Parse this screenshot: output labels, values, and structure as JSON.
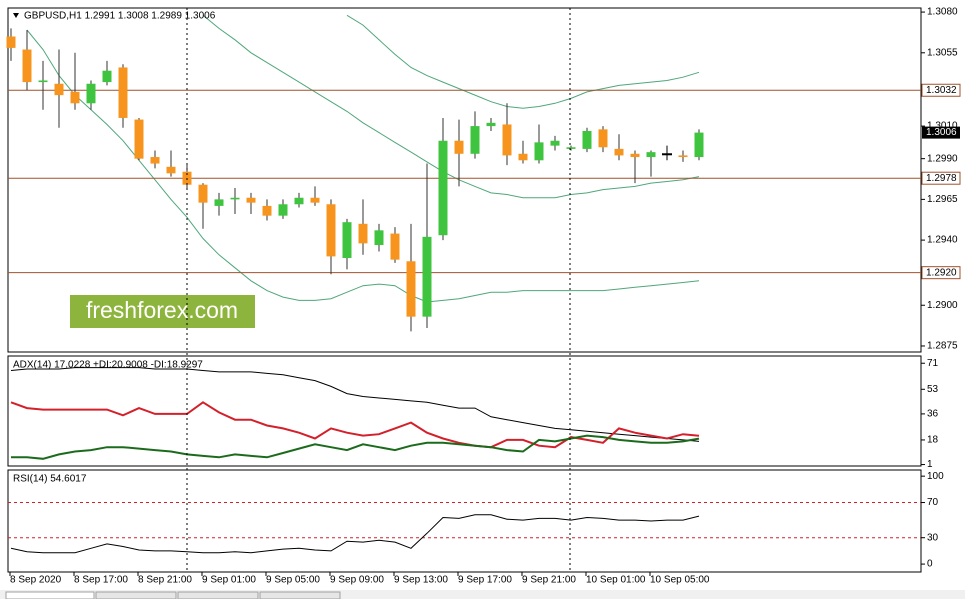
{
  "chart_data": [
    {
      "type": "candlestick",
      "title": "GBPUSD,H1  1.2991 1.3008 1.2989 1.3006",
      "watermark": "freshforex.com",
      "categories": [
        "8 Sep 2020",
        null,
        null,
        null,
        "8 Sep 17:00",
        null,
        null,
        null,
        "8 Sep 21:00",
        null,
        null,
        null,
        "9 Sep 01:00",
        null,
        null,
        null,
        "9 Sep 05:00",
        null,
        null,
        null,
        "9 Sep 09:00",
        null,
        null,
        null,
        "9 Sep 13:00",
        null,
        null,
        null,
        "9 Sep 17:00",
        null,
        null,
        null,
        "9 Sep 21:00",
        null,
        null,
        null,
        "10 Sep 01:00",
        null,
        null,
        null,
        "10 Sep 05:00",
        null,
        null,
        null
      ],
      "open": [
        1.3065,
        1.3057,
        1.3037,
        1.3036,
        1.3031,
        1.3024,
        1.3037,
        1.3046,
        1.3014,
        1.2991,
        1.2985,
        1.2982,
        1.2974,
        1.2961,
        1.2965,
        1.2966,
        1.2961,
        1.2955,
        1.2962,
        1.2966,
        1.2962,
        1.2929,
        1.295,
        1.2937,
        1.2944,
        1.2927,
        1.2893,
        1.2943,
        1.3001,
        1.2993,
        1.301,
        1.3011,
        1.2993,
        1.2989,
        1.2998,
        1.2996,
        1.2996,
        1.3008,
        1.2996,
        1.2993,
        1.2991,
        1.2993,
        1.2992,
        1.2991
      ],
      "high": [
        1.307,
        1.3069,
        1.305,
        1.3057,
        1.3055,
        1.3038,
        1.305,
        1.3048,
        1.3015,
        1.2995,
        1.2995,
        1.2987,
        1.2975,
        1.2969,
        1.2972,
        1.2969,
        1.2965,
        1.2965,
        1.2969,
        1.2973,
        1.2965,
        1.2953,
        1.2965,
        1.295,
        1.2948,
        1.295,
        1.2987,
        1.3015,
        1.3014,
        1.3019,
        1.3015,
        1.3024,
        1.3001,
        1.3011,
        1.3004,
        1.2998,
        1.3009,
        1.301,
        1.3005,
        1.2995,
        1.2995,
        1.2998,
        1.2995,
        1.3008
      ],
      "low": [
        1.305,
        1.3032,
        1.302,
        1.3009,
        1.302,
        1.302,
        1.3035,
        1.3009,
        1.2989,
        1.2984,
        1.2979,
        1.2972,
        1.2947,
        1.2955,
        1.2956,
        1.2956,
        1.2952,
        1.2953,
        1.296,
        1.2961,
        1.2919,
        1.2922,
        1.2931,
        1.2933,
        1.2926,
        1.2884,
        1.2886,
        1.294,
        1.2973,
        1.299,
        1.3007,
        1.2986,
        1.2987,
        1.2987,
        1.2995,
        1.2995,
        1.2994,
        1.2994,
        1.2989,
        1.2975,
        1.2979,
        1.2989,
        1.2988,
        1.2989
      ],
      "close": [
        1.3058,
        1.3037,
        1.3038,
        1.3029,
        1.3024,
        1.3036,
        1.3044,
        1.3015,
        1.299,
        1.2987,
        1.2981,
        1.2974,
        1.2963,
        1.2965,
        1.2966,
        1.2963,
        1.2955,
        1.2962,
        1.2966,
        1.2963,
        1.293,
        1.2951,
        1.2938,
        1.2946,
        1.2928,
        1.2893,
        1.2942,
        1.3001,
        1.2993,
        1.301,
        1.3012,
        1.2992,
        1.2989,
        1.3,
        1.3001,
        1.2997,
        1.3007,
        1.2997,
        1.2992,
        1.2991,
        1.2994,
        1.2993,
        1.2991,
        1.3006
      ],
      "up_color": "#3fc43f",
      "down_color": "#f7941d",
      "doji_color": "#000000",
      "bands": [
        {
          "color": "#4fa77a",
          "values": [
            null,
            null,
            null,
            null,
            null,
            null,
            null,
            null,
            null,
            null,
            null,
            null,
            null,
            null,
            null,
            null,
            null,
            null,
            null,
            null,
            null,
            1.3078,
            1.3072,
            1.3063,
            1.3054,
            1.3046,
            1.3041,
            1.3037,
            1.3033,
            1.3029,
            1.3025,
            1.3022,
            1.3021,
            1.3022,
            1.3024,
            1.3027,
            1.3031,
            1.3033,
            1.3035,
            1.3036,
            1.3037,
            1.3038,
            1.304,
            1.3043
          ]
        },
        {
          "color": "#4fa77a",
          "values": [
            null,
            null,
            null,
            null,
            null,
            null,
            null,
            null,
            null,
            null,
            null,
            null,
            1.3078,
            1.307,
            1.3063,
            1.3055,
            1.3049,
            1.3043,
            1.3037,
            1.3031,
            1.3025,
            1.3019,
            1.3012,
            1.3006,
            1.3,
            1.2994,
            1.2988,
            1.2982,
            1.2977,
            1.2973,
            1.2969,
            1.2968,
            1.2966,
            1.2966,
            1.2966,
            1.2968,
            1.2969,
            1.2971,
            1.2972,
            1.2973,
            1.2975,
            1.2976,
            1.2977,
            1.2979
          ]
        },
        {
          "color": "#4fa77a",
          "values": [
            null,
            1.3069,
            1.3057,
            1.3041,
            1.3029,
            1.302,
            1.3011,
            1.3001,
            1.2989,
            1.2977,
            1.2965,
            1.2954,
            1.2941,
            1.2931,
            1.2923,
            1.2915,
            1.2909,
            1.2905,
            1.2903,
            1.2903,
            1.2904,
            1.2908,
            1.2912,
            1.2913,
            1.2912,
            1.2906,
            1.2902,
            1.2903,
            1.2904,
            1.2906,
            1.2908,
            1.2908,
            1.2909,
            1.2909,
            1.2909,
            1.2909,
            1.2909,
            1.2909,
            1.291,
            1.2911,
            1.2912,
            1.2913,
            1.2914,
            1.2915
          ]
        }
      ],
      "hlines": [
        {
          "value": 1.3032,
          "color": "#a0522d"
        },
        {
          "value": 1.2978,
          "color": "#a0522d"
        },
        {
          "value": 1.292,
          "label": "1.2920",
          "color": "#a0522d"
        }
      ],
      "last": 1.3006,
      "ylim": [
        1.28713,
        1.30825
      ],
      "yticks": [
        {
          "value": 1.308,
          "label": "1.3080"
        },
        1.3055,
        {
          "value": 1.301,
          "label": "1.3010"
        },
        {
          "value": 1.299,
          "label": "1.2990"
        },
        1.2965,
        {
          "value": 1.294,
          "label": "1.2940"
        },
        {
          "value": 1.29,
          "label": "1.2900"
        },
        1.2875
      ]
    },
    {
      "type": "line",
      "title": "ADX(14) 17.0228 +DI:20.9008 -DI:18.9297",
      "ylim": [
        0,
        76
      ],
      "yticks": [
        71,
        53,
        36,
        18,
        1
      ],
      "series": [
        {
          "color": "#000000",
          "values": [
            66,
            67,
            67,
            67,
            68,
            68,
            68,
            68,
            68,
            67,
            67,
            67,
            66,
            65,
            65,
            65,
            64,
            63,
            61,
            59,
            55,
            50,
            48,
            47,
            46,
            45,
            44,
            42,
            40,
            40,
            34,
            32,
            30,
            28,
            26,
            25,
            24,
            23,
            22,
            21,
            20,
            19,
            18,
            17.0228
          ]
        },
        {
          "color": "#d4202a",
          "values": [
            44,
            40,
            39,
            39,
            39,
            39,
            39,
            35,
            40,
            36,
            36,
            36,
            44,
            37,
            32,
            32,
            28,
            26,
            23,
            19,
            26,
            23,
            21,
            22,
            26,
            30,
            23,
            19,
            16,
            14,
            13,
            18,
            18,
            14,
            13,
            20,
            18,
            16,
            26,
            23,
            21,
            19,
            22,
            20.9008
          ]
        },
        {
          "color": "#1c6b1c",
          "values": [
            6,
            6,
            5,
            8,
            10,
            11,
            13,
            13,
            12,
            11,
            10,
            8,
            7,
            6,
            8,
            7,
            6,
            9,
            12,
            15,
            13,
            11,
            15,
            13,
            11,
            14,
            16,
            16,
            15,
            14,
            13,
            11,
            10,
            18,
            17,
            19,
            21,
            20,
            18,
            17,
            16,
            16,
            17,
            18.9297
          ]
        }
      ]
    },
    {
      "type": "line",
      "title": "RSI(14) 54.6017",
      "ylim": [
        -9,
        107
      ],
      "yticks": [
        100,
        70,
        30,
        0
      ],
      "levels": [
        70,
        30
      ],
      "level_color": "#d4202a",
      "series": [
        {
          "color": "#000000",
          "values": [
            18,
            14,
            13,
            13,
            13,
            18,
            23,
            20,
            16,
            15,
            15,
            14,
            13,
            13,
            14,
            13,
            15,
            17,
            18,
            16,
            15,
            26,
            25,
            27,
            25,
            18,
            35,
            53,
            52,
            56,
            56,
            51,
            50,
            52,
            52,
            50,
            53,
            52,
            50,
            50,
            49,
            50,
            50,
            54.6017
          ]
        }
      ]
    }
  ]
}
